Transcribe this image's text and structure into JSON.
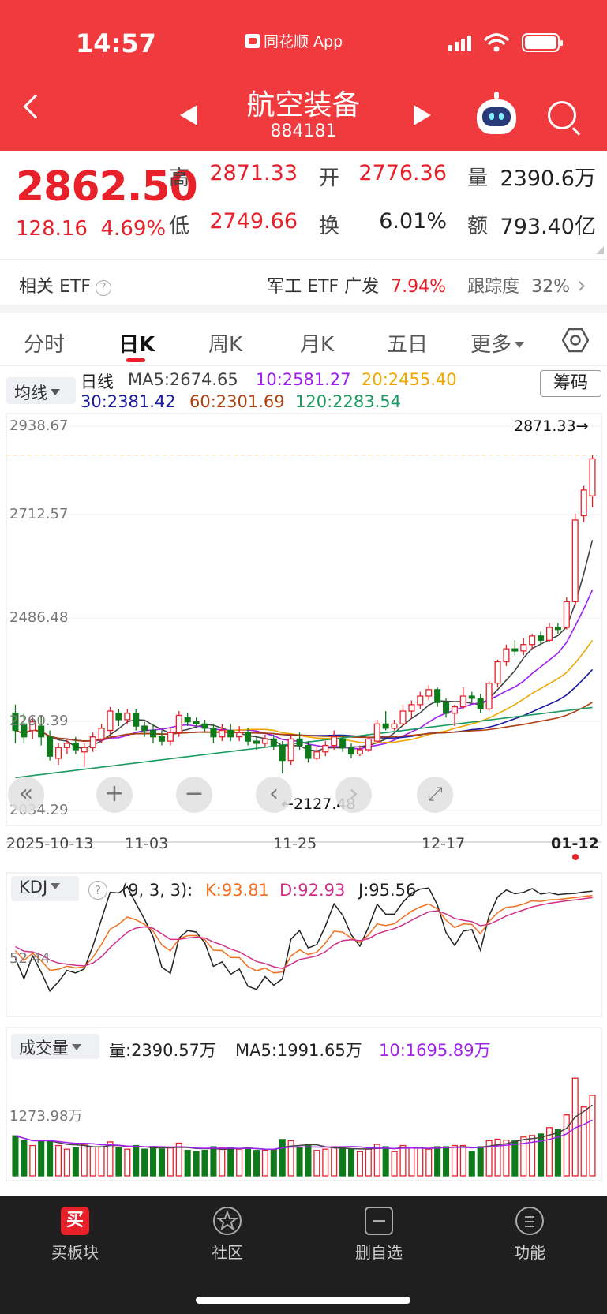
{
  "status_bar": {
    "time": "14:57",
    "app_badge": "同花顺 App"
  },
  "header": {
    "title": "航空装备",
    "code": "884181"
  },
  "quote": {
    "price": "2862.50",
    "change": "128.16",
    "change_pct": "4.69%",
    "high_label": "高",
    "high": "2871.33",
    "low_label": "低",
    "low": "2749.66",
    "open_label": "开",
    "open": "2776.36",
    "turnover_label": "换",
    "turnover": "6.01%",
    "volume_label": "量",
    "volume": "2390.6万",
    "amount_label": "额",
    "amount": "793.40亿"
  },
  "etf": {
    "label": "相关 ETF",
    "name": "军工 ETF 广发",
    "pct": "7.94%",
    "tracking_label": "跟踪度",
    "tracking": "32%"
  },
  "tabs": [
    {
      "label": "分时"
    },
    {
      "label": "日K"
    },
    {
      "label": "周K"
    },
    {
      "label": "月K"
    },
    {
      "label": "五日"
    },
    {
      "label": "更多"
    }
  ],
  "ma_legend": {
    "select": "均线",
    "type": "日线",
    "ma5": "MA5:2674.65",
    "ma10": "10:2581.27",
    "ma20": "20:2455.40",
    "ma30": "30:2381.42",
    "ma60": "60:2301.69",
    "ma120": "120:2283.54",
    "chips": "筹码"
  },
  "colors": {
    "up": "#e8202a",
    "down": "#0f7a1a",
    "ma5": "#444444",
    "ma10": "#a020f0",
    "ma20": "#f0a800",
    "ma30": "#1a1aa0",
    "ma60": "#b04010",
    "ma120": "#1a9a60",
    "header": "#f03a3e"
  },
  "kline": {
    "y_ticks": [
      "2938.67",
      "2712.57",
      "2486.48",
      "2260.39",
      "2034.29"
    ],
    "high_marker": "2871.33→",
    "low_marker": "←2127.48",
    "x_ticks": [
      "2025-10-13",
      "11-03",
      "11-25",
      "12-17",
      "01-12"
    ]
  },
  "kdj": {
    "select": "KDJ",
    "params": "(9, 3, 3):",
    "k": "K:93.81",
    "d": "D:92.93",
    "j": "J:95.56",
    "tick": "52.44"
  },
  "volume": {
    "select": "成交量",
    "vol": "量:2390.57万",
    "ma5": "MA5:1991.65万",
    "ma10": "10:1695.89万",
    "tick": "1273.98万"
  },
  "bottom_nav": [
    {
      "label": "买板块",
      "icon": "买"
    },
    {
      "label": "社区"
    },
    {
      "label": "删自选"
    },
    {
      "label": "功能"
    }
  ],
  "chart_data": {
    "type": "candlestick",
    "title": "航空装备 日K",
    "y_range": [
      2034.29,
      2938.67
    ],
    "x_labels": [
      "2025-10-13",
      "11-03",
      "11-25",
      "12-17",
      "01-12"
    ],
    "candles": [
      [
        2270,
        2230,
        2290,
        2200
      ],
      [
        2245,
        2215,
        2270,
        2200
      ],
      [
        2230,
        2250,
        2260,
        2210
      ],
      [
        2240,
        2215,
        2265,
        2195
      ],
      [
        2215,
        2170,
        2230,
        2160
      ],
      [
        2165,
        2190,
        2200,
        2150
      ],
      [
        2190,
        2200,
        2210,
        2175
      ],
      [
        2200,
        2185,
        2215,
        2175
      ],
      [
        2180,
        2190,
        2200,
        2145
      ],
      [
        2190,
        2215,
        2225,
        2180
      ],
      [
        2210,
        2235,
        2245,
        2200
      ],
      [
        2230,
        2275,
        2285,
        2220
      ],
      [
        2270,
        2255,
        2280,
        2240
      ],
      [
        2255,
        2270,
        2280,
        2245
      ],
      [
        2270,
        2240,
        2280,
        2230
      ],
      [
        2240,
        2230,
        2250,
        2215
      ],
      [
        2230,
        2215,
        2245,
        2200
      ],
      [
        2215,
        2205,
        2230,
        2195
      ],
      [
        2205,
        2225,
        2235,
        2195
      ],
      [
        2225,
        2265,
        2275,
        2215
      ],
      [
        2260,
        2250,
        2270,
        2240
      ],
      [
        2250,
        2245,
        2260,
        2235
      ],
      [
        2245,
        2235,
        2255,
        2225
      ],
      [
        2235,
        2215,
        2245,
        2200
      ],
      [
        2215,
        2230,
        2245,
        2205
      ],
      [
        2230,
        2215,
        2245,
        2205
      ],
      [
        2215,
        2225,
        2240,
        2205
      ],
      [
        2225,
        2205,
        2235,
        2195
      ],
      [
        2205,
        2200,
        2215,
        2185
      ],
      [
        2200,
        2210,
        2220,
        2190
      ],
      [
        2210,
        2195,
        2220,
        2185
      ],
      [
        2195,
        2160,
        2205,
        2130
      ],
      [
        2160,
        2210,
        2220,
        2150
      ],
      [
        2210,
        2195,
        2225,
        2185
      ],
      [
        2195,
        2165,
        2205,
        2155
      ],
      [
        2165,
        2180,
        2190,
        2160
      ],
      [
        2180,
        2195,
        2205,
        2170
      ],
      [
        2195,
        2215,
        2230,
        2185
      ],
      [
        2210,
        2190,
        2220,
        2180
      ],
      [
        2190,
        2175,
        2200,
        2165
      ],
      [
        2175,
        2185,
        2195,
        2170
      ],
      [
        2185,
        2210,
        2215,
        2180
      ],
      [
        2205,
        2245,
        2255,
        2200
      ],
      [
        2245,
        2235,
        2275,
        2230
      ],
      [
        2235,
        2245,
        2255,
        2230
      ],
      [
        2245,
        2275,
        2290,
        2240
      ],
      [
        2275,
        2290,
        2300,
        2260
      ],
      [
        2290,
        2310,
        2320,
        2280
      ],
      [
        2310,
        2325,
        2335,
        2300
      ],
      [
        2325,
        2295,
        2330,
        2285
      ],
      [
        2295,
        2270,
        2305,
        2260
      ],
      [
        2270,
        2285,
        2290,
        2240
      ],
      [
        2285,
        2310,
        2330,
        2280
      ],
      [
        2310,
        2305,
        2320,
        2295
      ],
      [
        2305,
        2280,
        2315,
        2270
      ],
      [
        2280,
        2340,
        2345,
        2275
      ],
      [
        2340,
        2390,
        2395,
        2330
      ],
      [
        2390,
        2420,
        2430,
        2380
      ],
      [
        2420,
        2415,
        2440,
        2405
      ],
      [
        2415,
        2430,
        2445,
        2405
      ],
      [
        2430,
        2450,
        2455,
        2420
      ],
      [
        2450,
        2440,
        2460,
        2430
      ],
      [
        2440,
        2470,
        2480,
        2435
      ],
      [
        2470,
        2465,
        2480,
        2455
      ],
      [
        2470,
        2530,
        2540,
        2465
      ],
      [
        2530,
        2720,
        2735,
        2520
      ],
      [
        2730,
        2790,
        2800,
        2715
      ],
      [
        2776.36,
        2862.5,
        2871.33,
        2749.66
      ]
    ]
  }
}
